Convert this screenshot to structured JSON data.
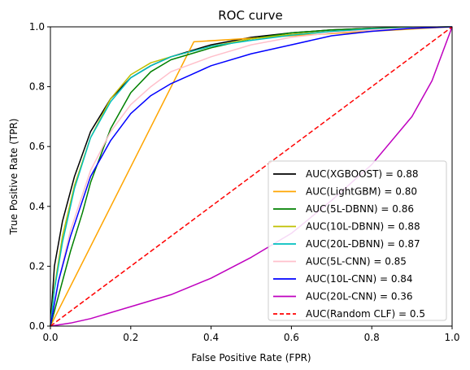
{
  "chart_data": {
    "type": "line",
    "title": "ROC curve",
    "xlabel": "False Positive Rate (FPR)",
    "ylabel": "True Positive Rate (TPR)",
    "xlim": [
      0,
      1
    ],
    "ylim": [
      0,
      1
    ],
    "xticks": [
      "0.0",
      "0.2",
      "0.4",
      "0.6",
      "0.8",
      "1.0"
    ],
    "yticks": [
      "0.0",
      "0.2",
      "0.4",
      "0.6",
      "0.8",
      "1.0"
    ],
    "grid": false,
    "legend_position": "lower-right",
    "series": [
      {
        "name": "AUC(XGBOOST) = 0.88",
        "color": "#000000",
        "dash": false,
        "x": [
          0,
          0.01,
          0.03,
          0.06,
          0.1,
          0.15,
          0.2,
          0.25,
          0.3,
          0.4,
          0.5,
          0.6,
          0.7,
          0.8,
          0.9,
          1.0
        ],
        "y": [
          0,
          0.2,
          0.35,
          0.5,
          0.65,
          0.76,
          0.83,
          0.87,
          0.9,
          0.94,
          0.965,
          0.98,
          0.99,
          0.995,
          0.998,
          1.0
        ]
      },
      {
        "name": "AUC(LightGBM) = 0.80",
        "color": "#ffa500",
        "dash": false,
        "x": [
          0,
          0.357,
          0.6,
          0.8,
          1.0
        ],
        "y": [
          0,
          0.95,
          0.97,
          0.985,
          1.0
        ]
      },
      {
        "name": "AUC(5L-DBNN) = 0.86",
        "color": "#008000",
        "dash": false,
        "x": [
          0,
          0.02,
          0.05,
          0.08,
          0.1,
          0.15,
          0.2,
          0.25,
          0.3,
          0.4,
          0.5,
          0.6,
          0.7,
          0.8,
          0.9,
          1.0
        ],
        "y": [
          0,
          0.1,
          0.25,
          0.38,
          0.48,
          0.66,
          0.78,
          0.85,
          0.89,
          0.93,
          0.96,
          0.98,
          0.99,
          0.995,
          0.998,
          1.0
        ]
      },
      {
        "name": "AUC(10L-DBNN) = 0.88",
        "color": "#bfbf00",
        "dash": false,
        "x": [
          0,
          0.01,
          0.03,
          0.06,
          0.1,
          0.15,
          0.2,
          0.25,
          0.3,
          0.4,
          0.5,
          0.6,
          0.7,
          0.8,
          0.9,
          1.0
        ],
        "y": [
          0,
          0.13,
          0.3,
          0.47,
          0.63,
          0.76,
          0.84,
          0.88,
          0.9,
          0.935,
          0.96,
          0.975,
          0.985,
          0.993,
          0.997,
          1.0
        ]
      },
      {
        "name": "AUC(20L-DBNN) = 0.87",
        "color": "#00bfbf",
        "dash": false,
        "x": [
          0,
          0.01,
          0.03,
          0.06,
          0.1,
          0.15,
          0.2,
          0.25,
          0.3,
          0.4,
          0.5,
          0.6,
          0.7,
          0.8,
          0.9,
          1.0
        ],
        "y": [
          0,
          0.12,
          0.28,
          0.46,
          0.63,
          0.75,
          0.83,
          0.87,
          0.9,
          0.935,
          0.955,
          0.972,
          0.985,
          0.993,
          0.997,
          1.0
        ]
      },
      {
        "name": "AUC(5L-CNN) = 0.85",
        "color": "#ffc0cb",
        "dash": false,
        "x": [
          0,
          0.02,
          0.05,
          0.1,
          0.15,
          0.2,
          0.25,
          0.3,
          0.4,
          0.5,
          0.6,
          0.7,
          0.8,
          0.9,
          1.0
        ],
        "y": [
          0,
          0.15,
          0.32,
          0.52,
          0.65,
          0.74,
          0.8,
          0.85,
          0.9,
          0.94,
          0.965,
          0.98,
          0.99,
          0.996,
          1.0
        ]
      },
      {
        "name": "AUC(10L-CNN) = 0.84",
        "color": "#0000ff",
        "dash": false,
        "x": [
          0,
          0.02,
          0.05,
          0.1,
          0.15,
          0.2,
          0.25,
          0.3,
          0.35,
          0.4,
          0.5,
          0.6,
          0.7,
          0.8,
          0.9,
          1.0
        ],
        "y": [
          0,
          0.15,
          0.3,
          0.5,
          0.62,
          0.71,
          0.77,
          0.81,
          0.84,
          0.87,
          0.91,
          0.94,
          0.97,
          0.985,
          0.995,
          1.0
        ]
      },
      {
        "name": "AUC(20L-CNN) = 0.36",
        "color": "#bf00bf",
        "dash": false,
        "x": [
          0,
          0.05,
          0.1,
          0.2,
          0.3,
          0.4,
          0.5,
          0.6,
          0.7,
          0.8,
          0.9,
          0.95,
          1.0
        ],
        "y": [
          0,
          0.01,
          0.025,
          0.065,
          0.105,
          0.16,
          0.23,
          0.31,
          0.42,
          0.54,
          0.7,
          0.82,
          1.0
        ]
      },
      {
        "name": "AUC(Random CLF) = 0.5",
        "color": "#ff0000",
        "dash": true,
        "x": [
          0,
          1.0
        ],
        "y": [
          0,
          1.0
        ]
      }
    ]
  }
}
